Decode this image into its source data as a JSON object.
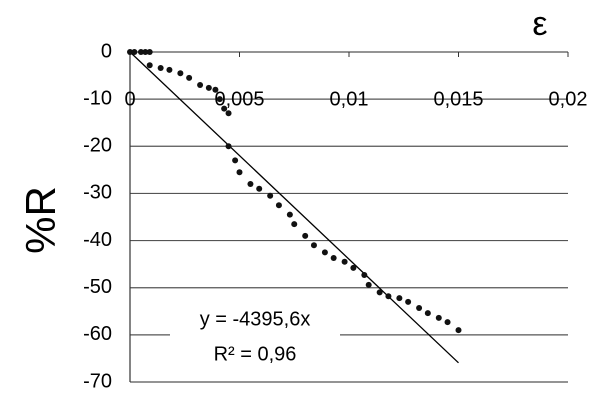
{
  "chart_data": {
    "type": "scatter",
    "x_label": "ε",
    "y_label": "%R",
    "x": [
      0,
      0.0002,
      0.0005,
      0.0007,
      0.0009,
      0.0009,
      0.0014,
      0.0018,
      0.0023,
      0.0027,
      0.0032,
      0.0036,
      0.0039,
      0.0041,
      0.0043,
      0.0045,
      0.0045,
      0.0048,
      0.005,
      0.0055,
      0.0059,
      0.0064,
      0.0068,
      0.0073,
      0.0075,
      0.008,
      0.0084,
      0.0089,
      0.0093,
      0.0098,
      0.0102,
      0.0107,
      0.0109,
      0.0114,
      0.0118,
      0.0123,
      0.0127,
      0.0132,
      0.0136,
      0.0141,
      0.0145,
      0.015
    ],
    "values": [
      0,
      0,
      0,
      0,
      0,
      -2.8,
      -3.4,
      -3.8,
      -4.5,
      -5.5,
      -7,
      -7.6,
      -8,
      -10,
      -12,
      -13,
      -20,
      -23,
      -25.5,
      -28,
      -29,
      -30.5,
      -32.5,
      -34.5,
      -36.5,
      -39,
      -41,
      -42.5,
      -43.7,
      -44.5,
      -45.8,
      -47.3,
      -49.4,
      -51,
      -51.8,
      -52.2,
      -53,
      -54.3,
      -55.4,
      -56.4,
      -57.3,
      -59
    ],
    "color": "#111111",
    "xlim": [
      0,
      0.02
    ],
    "xticks": [
      0,
      {
        "value": 0.005,
        "label": "0,005"
      },
      {
        "value": 0.01,
        "label": "0,01"
      },
      {
        "value": 0.015,
        "label": "0,015"
      },
      {
        "value": 0.02,
        "label": "0,02"
      }
    ],
    "ylim": [
      -70,
      0
    ],
    "yticks": [
      0,
      -10,
      -20,
      -30,
      -40,
      -50,
      -60,
      -70
    ],
    "grid": true,
    "trendline": {
      "slope": -4395.6,
      "equation": "y = -4395,6x",
      "r2": "R² = 0,96"
    }
  }
}
